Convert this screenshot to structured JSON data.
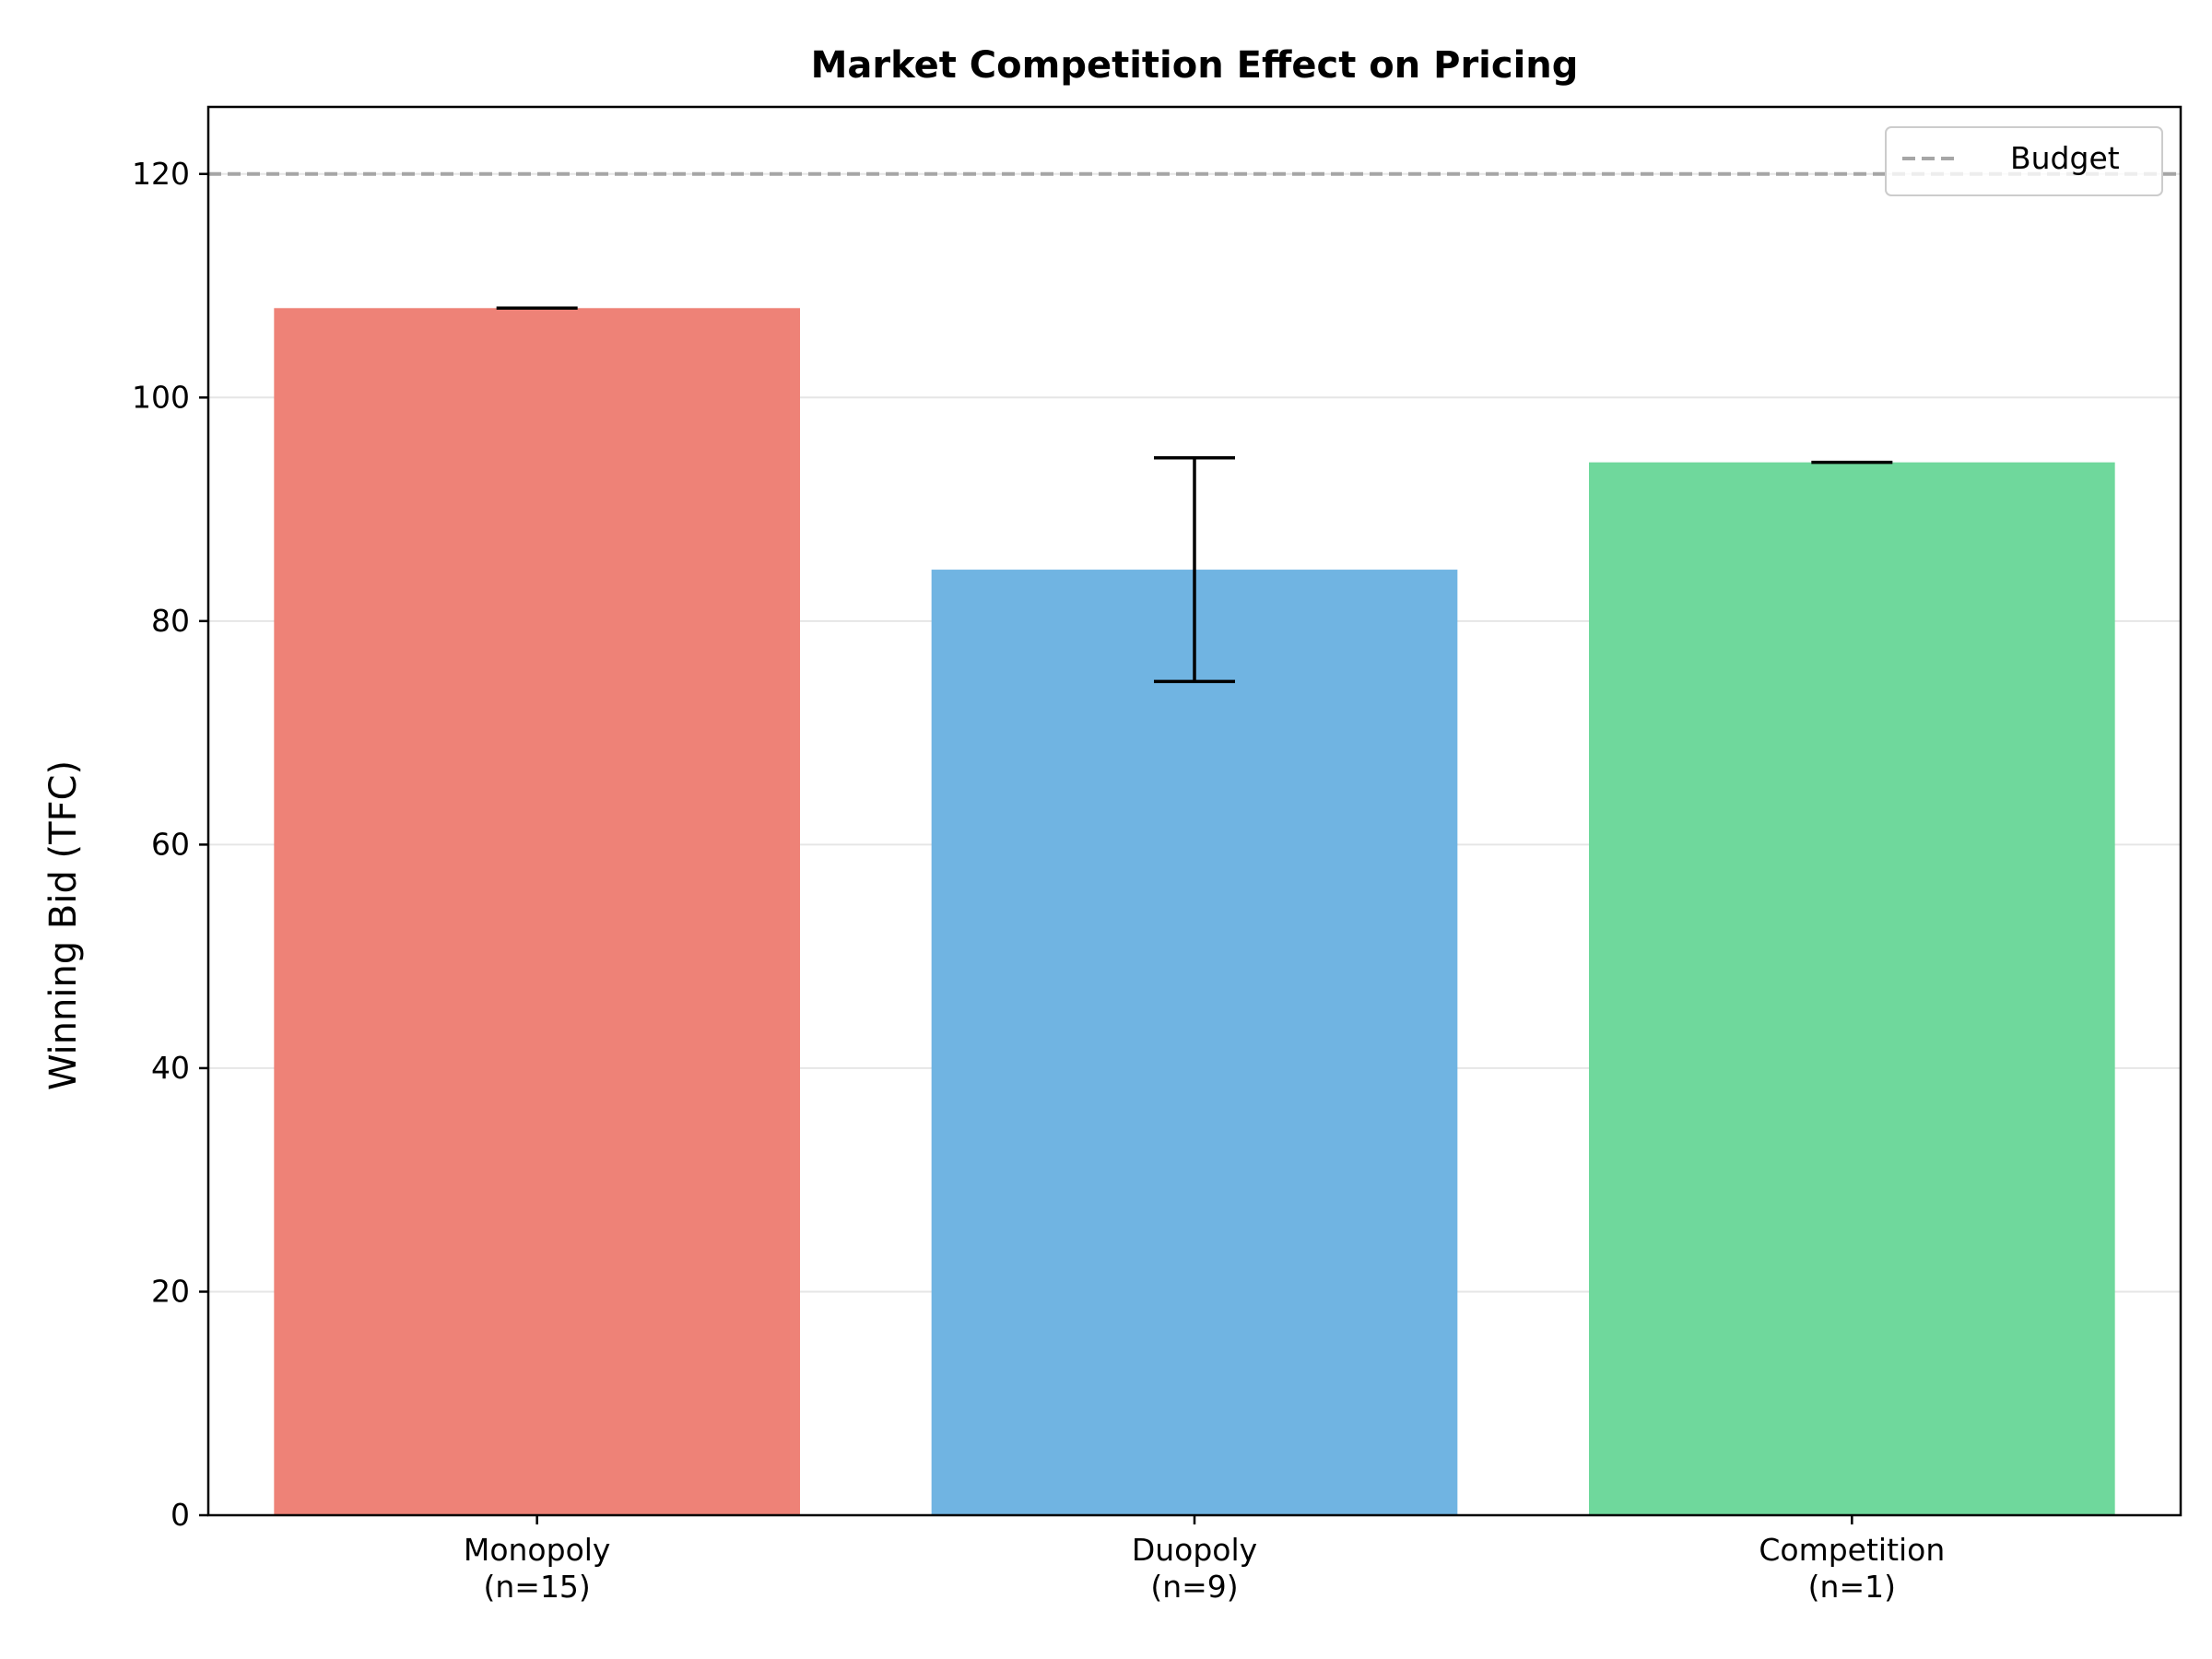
{
  "chart_data": {
    "type": "bar",
    "title": "Market Competition Effect on Pricing",
    "ylabel": "Winning Bid (TFC)",
    "xlabel": "",
    "ylim": [
      0,
      126
    ],
    "yticks": [
      0,
      20,
      40,
      60,
      80,
      100,
      120
    ],
    "grid": "y",
    "categories": [
      {
        "line1": "Monopoly",
        "line2": "(n=15)"
      },
      {
        "line1": "Duopoly",
        "line2": "(n=9)"
      },
      {
        "line1": "Competition",
        "line2": "(n=1)"
      }
    ],
    "values": [
      108.0,
      84.6,
      94.2
    ],
    "errors": [
      0,
      10.0,
      0
    ],
    "colors": [
      "#ee8277",
      "#70b4e2",
      "#6fd89c"
    ],
    "reference_line": {
      "name": "Budget",
      "value": 120,
      "color": "#a6a6a6",
      "style": "dashed"
    },
    "legend": {
      "position": "top-right",
      "entries": [
        "Budget"
      ]
    }
  }
}
